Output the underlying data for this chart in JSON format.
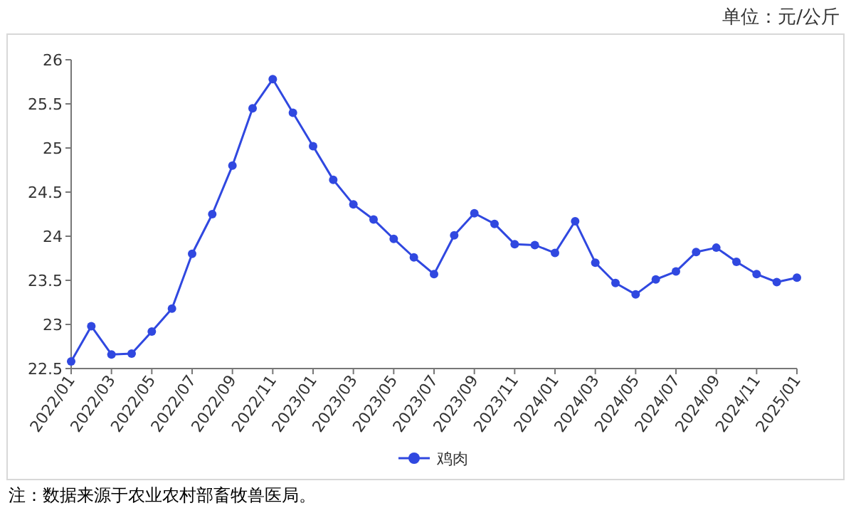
{
  "chart_data": {
    "type": "line",
    "categories": [
      "2022/01",
      null,
      "2022/03",
      null,
      "2022/05",
      null,
      "2022/07",
      null,
      "2022/09",
      null,
      "2022/11",
      null,
      "2023/01",
      null,
      "2023/03",
      null,
      "2023/05",
      null,
      "2023/07",
      null,
      "2023/09",
      null,
      "2023/11",
      null,
      "2024/01",
      null,
      "2024/03",
      null,
      "2024/05",
      null,
      "2024/07",
      null,
      "2024/09",
      null,
      "2024/11",
      null,
      "2025/01"
    ],
    "series": [
      {
        "name": "鸡肉",
        "color": "#3048e0",
        "values": [
          22.58,
          22.98,
          22.66,
          22.67,
          22.92,
          23.18,
          23.8,
          24.25,
          24.8,
          25.45,
          25.78,
          25.4,
          25.02,
          24.64,
          24.36,
          24.19,
          23.97,
          23.76,
          23.57,
          24.01,
          24.26,
          24.14,
          23.91,
          23.9,
          23.81,
          24.17,
          23.7,
          23.47,
          23.34,
          23.51,
          23.6,
          23.82,
          23.87,
          23.71,
          23.57,
          23.48,
          23.53
        ]
      }
    ],
    "ylim": [
      22.5,
      26
    ],
    "yticks": [
      22.5,
      23,
      23.5,
      24,
      24.5,
      25,
      25.5,
      26
    ],
    "marker": "circle",
    "legend": "bottom",
    "annotations": [
      "单位：元/公斤",
      "注：数据来源于农业农村部畜牧兽医局。"
    ]
  }
}
